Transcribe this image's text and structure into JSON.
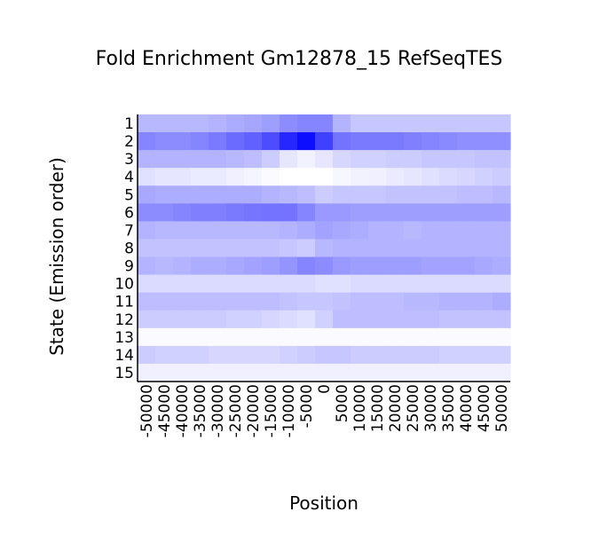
{
  "chart_data": {
    "type": "heatmap",
    "title": "Fold Enrichment Gm12878_15 RefSeqTES",
    "xlabel": "Position",
    "ylabel": "State (Emission order)",
    "x_ticks": [
      "-50000",
      "-45000",
      "-40000",
      "-35000",
      "-30000",
      "-25000",
      "-20000",
      "-15000",
      "-10000",
      "-5000",
      "0",
      "5000",
      "10000",
      "15000",
      "20000",
      "25000",
      "30000",
      "35000",
      "40000",
      "45000",
      "50000"
    ],
    "y_ticks": [
      "1",
      "2",
      "3",
      "4",
      "5",
      "6",
      "7",
      "8",
      "9",
      "10",
      "11",
      "12",
      "13",
      "14",
      "15"
    ],
    "color_low": "#ffffff",
    "color_high": "#0000ff",
    "value_range": [
      0,
      1
    ],
    "values": [
      [
        0.28,
        0.28,
        0.28,
        0.28,
        0.3,
        0.33,
        0.35,
        0.38,
        0.45,
        0.48,
        0.48,
        0.3,
        0.22,
        0.22,
        0.22,
        0.22,
        0.22,
        0.22,
        0.22,
        0.22,
        0.22
      ],
      [
        0.48,
        0.45,
        0.45,
        0.48,
        0.52,
        0.58,
        0.62,
        0.7,
        0.85,
        0.95,
        0.75,
        0.55,
        0.52,
        0.52,
        0.52,
        0.5,
        0.48,
        0.46,
        0.44,
        0.44,
        0.44
      ],
      [
        0.3,
        0.3,
        0.3,
        0.3,
        0.3,
        0.28,
        0.26,
        0.2,
        0.1,
        0.05,
        0.1,
        0.16,
        0.18,
        0.18,
        0.2,
        0.2,
        0.22,
        0.22,
        0.22,
        0.24,
        0.24
      ],
      [
        0.12,
        0.1,
        0.1,
        0.08,
        0.08,
        0.06,
        0.04,
        0.02,
        0.0,
        0.0,
        0.0,
        0.03,
        0.05,
        0.06,
        0.08,
        0.1,
        0.12,
        0.14,
        0.16,
        0.18,
        0.2
      ],
      [
        0.34,
        0.32,
        0.32,
        0.32,
        0.32,
        0.32,
        0.32,
        0.3,
        0.28,
        0.26,
        0.2,
        0.22,
        0.22,
        0.22,
        0.24,
        0.24,
        0.24,
        0.24,
        0.26,
        0.26,
        0.28
      ],
      [
        0.45,
        0.45,
        0.48,
        0.5,
        0.5,
        0.52,
        0.54,
        0.55,
        0.55,
        0.48,
        0.4,
        0.4,
        0.38,
        0.38,
        0.38,
        0.38,
        0.38,
        0.38,
        0.38,
        0.38,
        0.38
      ],
      [
        0.3,
        0.28,
        0.28,
        0.28,
        0.28,
        0.28,
        0.28,
        0.28,
        0.3,
        0.32,
        0.36,
        0.34,
        0.32,
        0.3,
        0.3,
        0.28,
        0.3,
        0.3,
        0.3,
        0.3,
        0.3
      ],
      [
        0.24,
        0.24,
        0.24,
        0.24,
        0.24,
        0.24,
        0.24,
        0.24,
        0.22,
        0.2,
        0.28,
        0.3,
        0.3,
        0.3,
        0.3,
        0.3,
        0.3,
        0.3,
        0.3,
        0.3,
        0.3
      ],
      [
        0.3,
        0.28,
        0.3,
        0.32,
        0.32,
        0.34,
        0.36,
        0.38,
        0.42,
        0.48,
        0.45,
        0.4,
        0.38,
        0.38,
        0.38,
        0.38,
        0.36,
        0.36,
        0.36,
        0.34,
        0.32
      ],
      [
        0.14,
        0.14,
        0.14,
        0.14,
        0.14,
        0.14,
        0.14,
        0.14,
        0.14,
        0.14,
        0.12,
        0.12,
        0.14,
        0.14,
        0.14,
        0.14,
        0.14,
        0.14,
        0.14,
        0.14,
        0.14
      ],
      [
        0.26,
        0.26,
        0.26,
        0.26,
        0.26,
        0.26,
        0.26,
        0.26,
        0.24,
        0.22,
        0.22,
        0.24,
        0.26,
        0.26,
        0.26,
        0.28,
        0.28,
        0.3,
        0.3,
        0.3,
        0.32
      ],
      [
        0.2,
        0.2,
        0.2,
        0.2,
        0.2,
        0.18,
        0.18,
        0.16,
        0.14,
        0.12,
        0.18,
        0.26,
        0.26,
        0.26,
        0.26,
        0.26,
        0.26,
        0.24,
        0.24,
        0.24,
        0.24
      ],
      [
        0.02,
        0.02,
        0.02,
        0.02,
        0.02,
        0.02,
        0.02,
        0.02,
        0.02,
        0.02,
        0.02,
        0.02,
        0.02,
        0.02,
        0.02,
        0.02,
        0.02,
        0.02,
        0.02,
        0.02,
        0.02
      ],
      [
        0.2,
        0.18,
        0.18,
        0.18,
        0.16,
        0.16,
        0.16,
        0.16,
        0.18,
        0.2,
        0.22,
        0.22,
        0.2,
        0.2,
        0.2,
        0.2,
        0.2,
        0.18,
        0.18,
        0.18,
        0.18
      ],
      [
        0.06,
        0.06,
        0.06,
        0.06,
        0.06,
        0.06,
        0.06,
        0.06,
        0.06,
        0.06,
        0.06,
        0.06,
        0.06,
        0.06,
        0.06,
        0.06,
        0.06,
        0.06,
        0.06,
        0.06,
        0.06
      ]
    ]
  }
}
